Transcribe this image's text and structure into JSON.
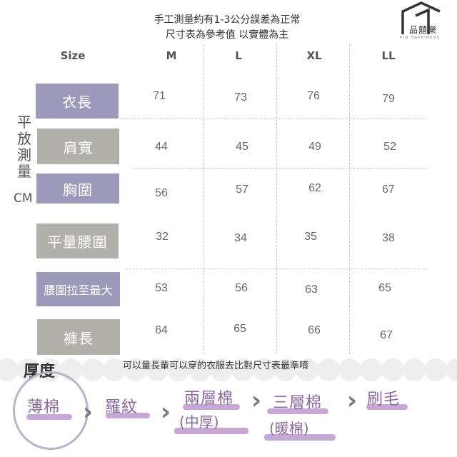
{
  "notes": {
    "line1": "手工測量約有1-3公分誤差為正常",
    "line2": "尺寸表為參考值 以實體為主"
  },
  "logo": {
    "text": "品囍樂",
    "sub": "PIN HAPPINESS",
    "icon": "house-outline-icon"
  },
  "table": {
    "size_header": "Size",
    "columns": [
      "M",
      "L",
      "XL",
      "LL"
    ],
    "side_caption": [
      "平",
      "放",
      "測",
      "量"
    ],
    "unit": "CM",
    "rows": [
      {
        "label": "衣長",
        "color": "#9c99bb",
        "values": [
          "71",
          "73",
          "76",
          "79"
        ]
      },
      {
        "label": "肩寬",
        "color": "#b1b0aa",
        "values": [
          "44",
          "45",
          "49",
          "52"
        ]
      },
      {
        "label": "胸圍",
        "color": "#9c99bb",
        "values": [
          "56",
          "57",
          "62",
          "67"
        ]
      },
      {
        "label": "平量腰圍",
        "color": "#b1b0aa",
        "values": [
          "32",
          "34",
          "35",
          "38"
        ]
      },
      {
        "label": "腰圍拉至最大",
        "color": "#9c99bb",
        "values": [
          "53",
          "56",
          "63",
          "65"
        ]
      },
      {
        "label": "褲長",
        "color": "#b1b0aa",
        "values": [
          "64",
          "65",
          "66",
          "67"
        ]
      }
    ]
  },
  "thickness": {
    "heading": "厚度",
    "note": "可以量長輩可以穿的衣服去比對尺寸表最準唷",
    "levels": [
      {
        "name": "薄棉",
        "sub": ""
      },
      {
        "name": "羅紋",
        "sub": ""
      },
      {
        "name": "兩層棉",
        "sub": "(中厚)"
      },
      {
        "name": "三層棉",
        "sub": "(暖棉)"
      },
      {
        "name": "刷毛",
        "sub": ""
      }
    ],
    "selected": "薄棉",
    "highlight_color": "#c7a7d4",
    "text_color": "#8a68a0"
  }
}
